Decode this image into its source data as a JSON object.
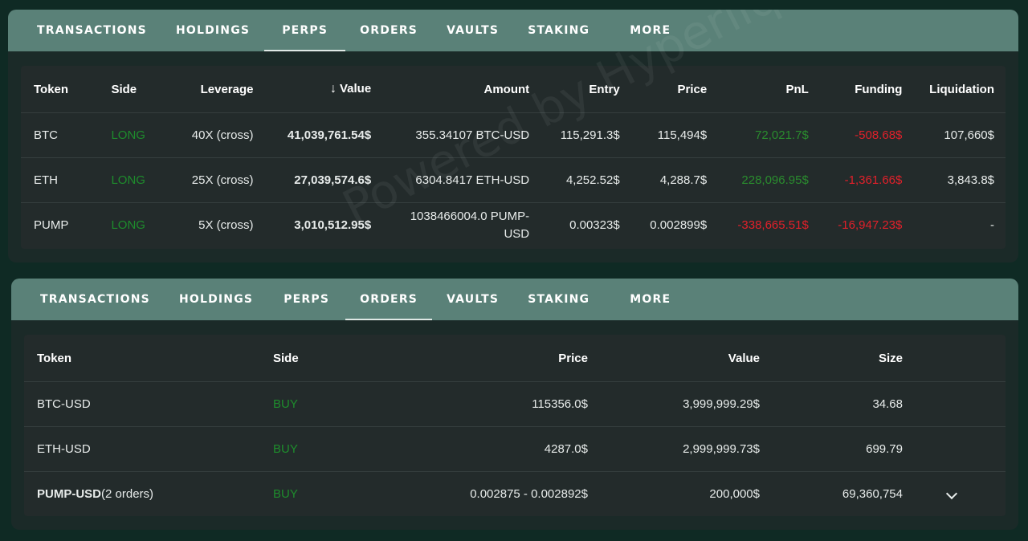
{
  "perps_panel": {
    "tabs": [
      {
        "label": "TRANSACTIONS"
      },
      {
        "label": "HOLDINGS"
      },
      {
        "label": "PERPS"
      },
      {
        "label": "ORDERS"
      },
      {
        "label": "VAULTS"
      },
      {
        "label": "STAKING"
      },
      {
        "label": "MORE"
      }
    ],
    "active_tab": "PERPS",
    "watermark": "Powered by Hyperliquid",
    "headers": {
      "token": "Token",
      "side": "Side",
      "leverage": "Leverage",
      "value": "Value",
      "amount": "Amount",
      "entry": "Entry",
      "price": "Price",
      "pnl": "PnL",
      "funding": "Funding",
      "liquidation": "Liquidation"
    },
    "value_sort_icon": "↓",
    "rows": [
      {
        "token": "BTC",
        "side": "LONG",
        "leverage": "40X (cross)",
        "value": "41,039,761.54$",
        "amount": "355.34107 BTC-USD",
        "entry": "115,291.3$",
        "price": "115,494$",
        "pnl": "72,021.7$",
        "funding": "-508.68$",
        "liquidation": "107,660$"
      },
      {
        "token": "ETH",
        "side": "LONG",
        "leverage": "25X (cross)",
        "value": "27,039,574.6$",
        "amount": "6304.8417 ETH-USD",
        "entry": "4,252.52$",
        "price": "4,288.7$",
        "pnl": "228,096.95$",
        "funding": "-1,361.66$",
        "liquidation": "3,843.8$"
      },
      {
        "token": "PUMP",
        "side": "LONG",
        "leverage": "5X (cross)",
        "value": "3,010,512.95$",
        "amount": "1038466004.0 PUMP-USD",
        "entry": "0.00323$",
        "price": "0.002899$",
        "pnl": "-338,665.51$",
        "funding": "-16,947.23$",
        "liquidation": "-"
      }
    ]
  },
  "orders_panel": {
    "tabs": [
      {
        "label": "TRANSACTIONS"
      },
      {
        "label": "HOLDINGS"
      },
      {
        "label": "PERPS"
      },
      {
        "label": "ORDERS"
      },
      {
        "label": "VAULTS"
      },
      {
        "label": "STAKING"
      },
      {
        "label": "MORE"
      }
    ],
    "active_tab": "ORDERS",
    "headers": {
      "token": "Token",
      "side": "Side",
      "price": "Price",
      "value": "Value",
      "size": "Size"
    },
    "rows": [
      {
        "token": "BTC-USD",
        "token_suffix": "",
        "side": "BUY",
        "price": "115356.0$",
        "value": "3,999,999.29$",
        "size": "34.68"
      },
      {
        "token": "ETH-USD",
        "token_suffix": "",
        "side": "BUY",
        "price": "4287.0$",
        "value": "2,999,999.73$",
        "size": "699.79"
      },
      {
        "token": "PUMP-USD",
        "token_suffix": "(2 orders)",
        "side": "BUY",
        "price": "0.002875 - 0.002892$",
        "value": "200,000$",
        "size": "69,360,754",
        "expandable": true
      }
    ]
  },
  "colors": {
    "tab_bar": "#5a8178",
    "panel_bg": "#1b2a28",
    "table_bg": "#232b2b",
    "long_green": "#1e8c2c",
    "profit_green": "#2a8c2e",
    "loss_red": "#e0202a"
  },
  "icons": {
    "sort": "arrow-down-icon",
    "expand": "chevron-down-icon"
  }
}
